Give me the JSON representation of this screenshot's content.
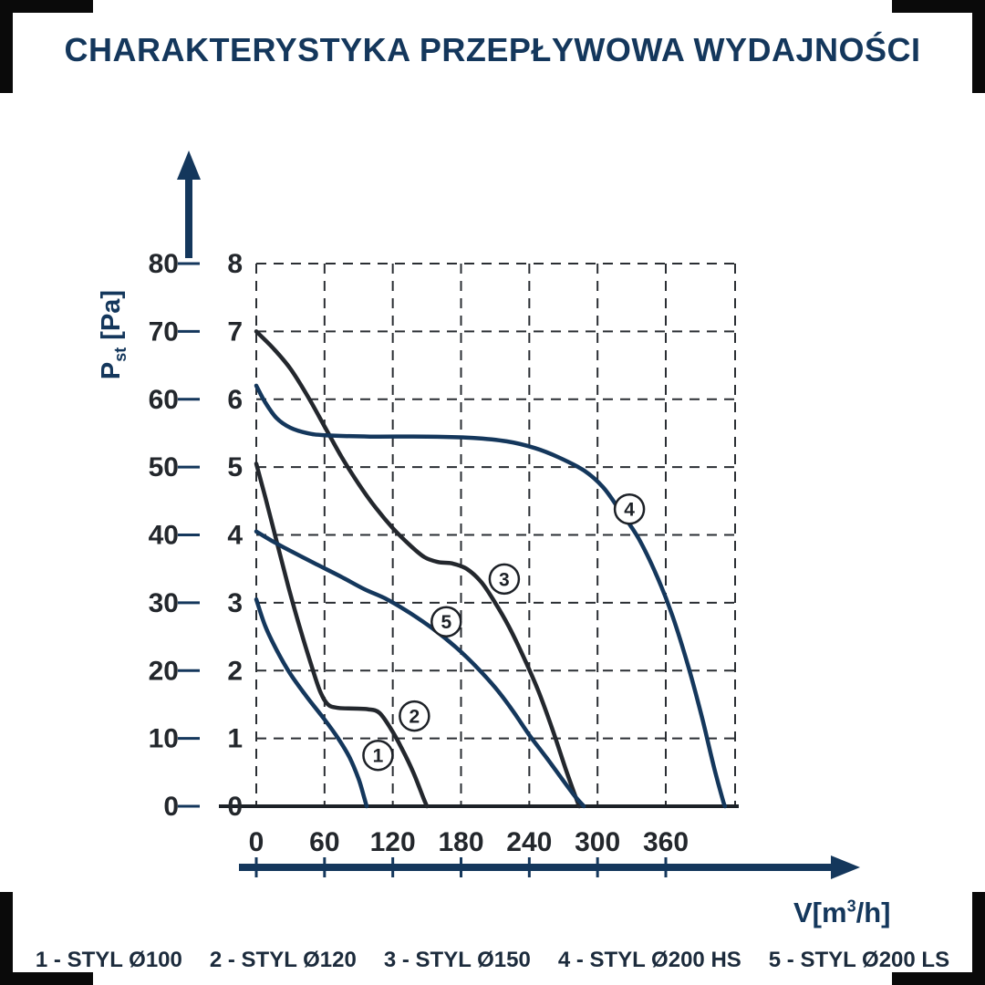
{
  "title": "CHARAKTERYSTYKA PRZEPŁYWOWA WYDAJNOŚCI",
  "axes": {
    "y_title": {
      "letter": "P",
      "sub": "st",
      "unit": "[Pa]"
    },
    "x_title": {
      "pre": "V[m",
      "sup": "3",
      "post": "/h]"
    }
  },
  "legend": {
    "items": [
      "1 - STYL Ø100",
      "2 - STYL Ø120",
      "3 - STYL Ø150",
      "4 - STYL Ø200 HS",
      "5 - STYL Ø200 LS"
    ]
  },
  "colors": {
    "navy": "#14375c",
    "dark": "#23272d",
    "grid": "#2a2e33",
    "axis": "#14375c",
    "axis_line": "#1c2127",
    "tick_text": "#23272c",
    "title": "#14375c",
    "legend_text": "#1c2b3c",
    "label_circle": "#1d2127"
  },
  "chart_data": {
    "type": "line",
    "title": "CHARAKTERYSTYKA PRZEPŁYWOWA WYDAJNOŚCI",
    "xlabel": "V[m³/h]",
    "ylabel": "Pst [Pa]",
    "grid": "dashed",
    "x_ticks": [
      0,
      60,
      120,
      180,
      240,
      300,
      360
    ],
    "xlim": [
      0,
      421
    ],
    "ylim": [
      0,
      8
    ],
    "y_ticks_inner": [
      0,
      1,
      2,
      3,
      4,
      5,
      6,
      7,
      8
    ],
    "y_ticks_outer_pa": [
      0,
      10,
      20,
      30,
      40,
      50,
      60,
      70,
      80
    ],
    "y_units_note": "outer scale in Pa = inner scale x 10",
    "series": [
      {
        "id": 1,
        "name": "STYL Ø100",
        "color_key": "navy",
        "label_at": [
          107,
          0.75
        ],
        "points": [
          [
            0,
            3.05
          ],
          [
            8,
            2.65
          ],
          [
            18,
            2.3
          ],
          [
            30,
            1.95
          ],
          [
            45,
            1.6
          ],
          [
            60,
            1.28
          ],
          [
            72,
            1.0
          ],
          [
            82,
            0.72
          ],
          [
            90,
            0.4
          ],
          [
            95,
            0.12
          ],
          [
            97,
            0
          ]
        ]
      },
      {
        "id": 2,
        "name": "STYL Ø120",
        "color_key": "dark",
        "label_at": [
          139,
          1.33
        ],
        "points": [
          [
            0,
            5.05
          ],
          [
            8,
            4.55
          ],
          [
            18,
            3.9
          ],
          [
            28,
            3.25
          ],
          [
            38,
            2.65
          ],
          [
            48,
            2.1
          ],
          [
            56,
            1.7
          ],
          [
            63,
            1.5
          ],
          [
            72,
            1.45
          ],
          [
            85,
            1.44
          ],
          [
            98,
            1.43
          ],
          [
            108,
            1.38
          ],
          [
            118,
            1.15
          ],
          [
            128,
            0.85
          ],
          [
            138,
            0.5
          ],
          [
            147,
            0.12
          ],
          [
            150,
            0
          ]
        ]
      },
      {
        "id": 3,
        "name": "STYL Ø150",
        "color_key": "dark",
        "label_at": [
          218,
          3.35
        ],
        "points": [
          [
            0,
            7.0
          ],
          [
            15,
            6.75
          ],
          [
            30,
            6.45
          ],
          [
            45,
            6.05
          ],
          [
            60,
            5.6
          ],
          [
            75,
            5.15
          ],
          [
            90,
            4.75
          ],
          [
            105,
            4.4
          ],
          [
            120,
            4.1
          ],
          [
            135,
            3.85
          ],
          [
            148,
            3.67
          ],
          [
            160,
            3.6
          ],
          [
            172,
            3.58
          ],
          [
            185,
            3.5
          ],
          [
            198,
            3.3
          ],
          [
            210,
            3.0
          ],
          [
            222,
            2.65
          ],
          [
            235,
            2.2
          ],
          [
            248,
            1.7
          ],
          [
            260,
            1.15
          ],
          [
            272,
            0.55
          ],
          [
            282,
            0.08
          ],
          [
            284,
            0
          ]
        ]
      },
      {
        "id": 4,
        "name": "STYL Ø200 HS",
        "color_key": "navy",
        "label_at": [
          328,
          4.38
        ],
        "points": [
          [
            0,
            6.2
          ],
          [
            8,
            5.95
          ],
          [
            18,
            5.72
          ],
          [
            30,
            5.58
          ],
          [
            45,
            5.5
          ],
          [
            60,
            5.47
          ],
          [
            100,
            5.45
          ],
          [
            150,
            5.45
          ],
          [
            190,
            5.43
          ],
          [
            220,
            5.38
          ],
          [
            245,
            5.28
          ],
          [
            265,
            5.15
          ],
          [
            288,
            4.95
          ],
          [
            305,
            4.7
          ],
          [
            320,
            4.35
          ],
          [
            336,
            3.95
          ],
          [
            352,
            3.4
          ],
          [
            366,
            2.8
          ],
          [
            380,
            2.05
          ],
          [
            392,
            1.3
          ],
          [
            402,
            0.6
          ],
          [
            410,
            0.1
          ],
          [
            412,
            0
          ]
        ]
      },
      {
        "id": 5,
        "name": "STYL Ø200 LS",
        "color_key": "navy",
        "label_at": [
          167,
          2.72
        ],
        "points": [
          [
            0,
            4.05
          ],
          [
            15,
            3.9
          ],
          [
            35,
            3.72
          ],
          [
            55,
            3.55
          ],
          [
            75,
            3.38
          ],
          [
            95,
            3.2
          ],
          [
            115,
            3.05
          ],
          [
            135,
            2.85
          ],
          [
            155,
            2.62
          ],
          [
            175,
            2.35
          ],
          [
            192,
            2.08
          ],
          [
            210,
            1.75
          ],
          [
            225,
            1.42
          ],
          [
            240,
            1.05
          ],
          [
            255,
            0.72
          ],
          [
            268,
            0.42
          ],
          [
            280,
            0.15
          ],
          [
            288,
            0
          ]
        ]
      }
    ]
  }
}
